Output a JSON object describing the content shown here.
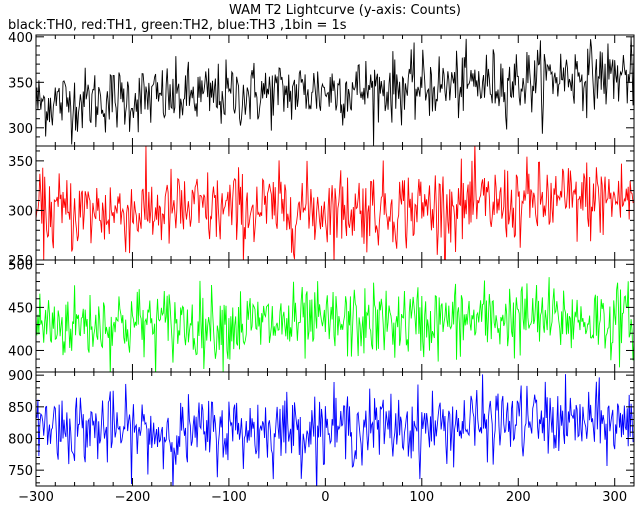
{
  "title": "WAM T2 Lightcurve (y-axis: Counts)",
  "subtitle": "black:TH0, red:TH1, green:TH2, blue:TH3 ,1bin = 1s",
  "colors": {
    "TH0": "#000000",
    "TH1": "#ff0000",
    "TH2": "#00ff00",
    "TH3": "#0000ff"
  },
  "chart_data": {
    "type": "line",
    "title": "WAM T2 Lightcurve (y-axis: Counts)",
    "subtitle": "black:TH0, red:TH1, green:TH2, blue:TH3 ,1bin = 1s",
    "xlim": [
      -300,
      320
    ],
    "x_ticks": [
      -300,
      -200,
      -100,
      0,
      100,
      200,
      300
    ],
    "bin_seconds": 1,
    "panels": [
      {
        "series_name": "TH0",
        "color": "#000000",
        "ylim": [
          280,
          402
        ],
        "y_ticks": [
          300,
          350,
          400
        ],
        "trend_x": [
          -300,
          -200,
          -100,
          0,
          100,
          200,
          250,
          320
        ],
        "trend_y": [
          327,
          332,
          336,
          341,
          345,
          351,
          358,
          358
        ],
        "noise_sd": 18
      },
      {
        "series_name": "TH1",
        "color": "#ff0000",
        "ylim": [
          250,
          365
        ],
        "y_ticks": [
          250,
          300,
          350
        ],
        "trend_x": [
          -300,
          -200,
          -100,
          0,
          100,
          200,
          320
        ],
        "trend_y": [
          298,
          299,
          301,
          302,
          303,
          307,
          313
        ],
        "noise_sd": 20
      },
      {
        "series_name": "TH2",
        "color": "#00ff00",
        "ylim": [
          375,
          505
        ],
        "y_ticks": [
          400,
          450,
          500
        ],
        "trend_x": [
          -300,
          -200,
          -100,
          0,
          100,
          200,
          320
        ],
        "trend_y": [
          430,
          432,
          430,
          431,
          433,
          438,
          435
        ],
        "noise_sd": 21
      },
      {
        "series_name": "TH3",
        "color": "#0000ff",
        "ylim": [
          725,
          905
        ],
        "y_ticks": [
          750,
          800,
          850,
          900
        ],
        "trend_x": [
          -300,
          -200,
          -150,
          -100,
          0,
          100,
          200,
          320
        ],
        "trend_y": [
          822,
          812,
          806,
          814,
          816,
          818,
          828,
          822
        ],
        "noise_sd": 28
      }
    ]
  }
}
